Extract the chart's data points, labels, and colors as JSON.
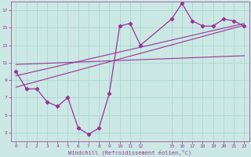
{
  "xlabel": "Windchill (Refroidissement éolien,°C)",
  "bg_color": "#cce8e4",
  "grid_color": "#aad8d4",
  "line_color": "#993399",
  "x_hours": [
    0,
    1,
    2,
    3,
    4,
    5,
    6,
    7,
    8,
    9,
    10,
    11,
    12,
    15,
    16,
    17,
    18,
    19,
    20,
    21,
    22
  ],
  "y_temp": [
    10.0,
    8.0,
    8.0,
    6.5,
    6.0,
    7.0,
    3.5,
    2.8,
    3.5,
    7.5,
    15.2,
    15.5,
    13.0,
    16.0,
    17.8,
    15.8,
    15.2,
    15.2,
    16.0,
    15.8,
    15.2
  ],
  "xlim": [
    -0.5,
    22.5
  ],
  "ylim": [
    2,
    18
  ],
  "yticks": [
    3,
    5,
    7,
    9,
    11,
    13,
    15,
    17
  ],
  "xticks": [
    0,
    1,
    2,
    3,
    4,
    5,
    6,
    7,
    8,
    9,
    10,
    11,
    12,
    15,
    16,
    17,
    18,
    19,
    20,
    21,
    22
  ],
  "trend1": {
    "x": [
      0,
      22
    ],
    "y": [
      9.5,
      15.5
    ]
  },
  "trend2": {
    "x": [
      0,
      22
    ],
    "y": [
      8.2,
      15.3
    ]
  },
  "trend3": {
    "x": [
      0,
      22
    ],
    "y": [
      10.8,
      11.8
    ]
  }
}
